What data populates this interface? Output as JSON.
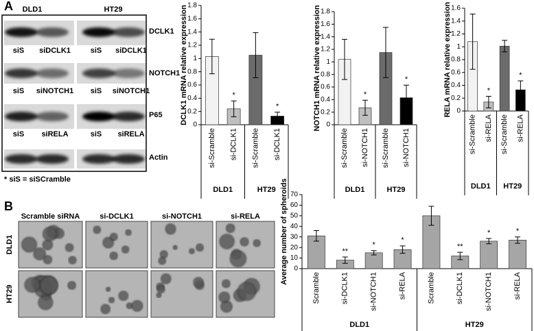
{
  "panels": [
    "A",
    "B"
  ],
  "blot": {
    "cell_lines": [
      "DLD1",
      "HT29"
    ],
    "rows": [
      {
        "protein": "DCLK1",
        "lanes": [
          [
            "siS",
            "siDCLK1"
          ],
          [
            "siS",
            "siDCLK1"
          ]
        ]
      },
      {
        "protein": "NOTCH1",
        "lanes": [
          [
            "siS",
            "siNOTCH1"
          ],
          [
            "siS",
            "siNOTCH1"
          ]
        ]
      },
      {
        "protein": "P65",
        "lanes": [
          [
            "siS",
            "siRELA"
          ],
          [
            "siS",
            "siRELA"
          ]
        ]
      },
      {
        "protein": "Actin"
      }
    ],
    "footnote": "* siS = siSCramble"
  },
  "micrographs": {
    "columns": [
      "Scramble siRNA",
      "si-DCLK1",
      "si-NOTCH1",
      "si-RELA"
    ],
    "rows": [
      "DLD1",
      "HT29"
    ]
  },
  "chart_data": [
    {
      "type": "bar",
      "ylabel": "DCLK1 mRNA relative expression",
      "categories": [
        "si-Scramble",
        "si-DCLK1",
        "si-Scramble",
        "si-DCLK1"
      ],
      "groups": [
        "DLD1",
        "HT29"
      ],
      "values": [
        1.03,
        0.24,
        1.05,
        0.13
      ],
      "errors": [
        0.26,
        0.12,
        0.34,
        0.06
      ],
      "annotations": [
        null,
        "*",
        null,
        "*"
      ],
      "colors": [
        "#f2f2f2",
        "#bfbfbf",
        "#6b6b6b",
        "#000000"
      ],
      "ylim": [
        0,
        1.8
      ],
      "yticks": [
        0,
        0.2,
        0.4,
        0.6,
        0.8,
        1,
        1.2,
        1.4,
        1.6,
        1.8
      ]
    },
    {
      "type": "bar",
      "ylabel": "NOTCH1 mRNA relative expression",
      "categories": [
        "si-Scramble",
        "si-NOTCH1",
        "si-Scramble",
        "si-NOTCH1"
      ],
      "groups": [
        "DLD1",
        "HT29"
      ],
      "values": [
        1.04,
        0.27,
        1.15,
        0.43
      ],
      "errors": [
        0.32,
        0.12,
        0.4,
        0.2
      ],
      "annotations": [
        null,
        "*",
        null,
        "*"
      ],
      "colors": [
        "#f2f2f2",
        "#bfbfbf",
        "#6b6b6b",
        "#000000"
      ],
      "ylim": [
        0,
        1.8
      ],
      "yticks": [
        0,
        0.2,
        0.4,
        0.6,
        0.8,
        1,
        1.2,
        1.4,
        1.6,
        1.8
      ]
    },
    {
      "type": "bar",
      "ylabel": "RELA mRNA relative expression",
      "categories": [
        "si-Scramble",
        "si-RELA",
        "si-Scramble",
        "si-RELA"
      ],
      "groups": [
        "DLD1",
        "HT29"
      ],
      "values": [
        1.08,
        0.14,
        1.01,
        0.33
      ],
      "errors": [
        0.43,
        0.09,
        0.09,
        0.14
      ],
      "annotations": [
        null,
        "*",
        null,
        "*"
      ],
      "colors": [
        "#f2f2f2",
        "#bfbfbf",
        "#6b6b6b",
        "#000000"
      ],
      "ylim": [
        0,
        1.6
      ],
      "yticks": [
        0,
        0.2,
        0.4,
        0.6,
        0.8,
        1,
        1.2,
        1.4,
        1.6
      ]
    },
    {
      "type": "bar",
      "ylabel": "Average number of spheroids",
      "categories": [
        "Scramble",
        "si-DCLK1",
        "si-NOTCH1",
        "si-RELA",
        "Scramble",
        "si-DCLK1",
        "si-NOTCH1",
        "si-RELA"
      ],
      "groups": [
        "DLD1",
        "HT29"
      ],
      "values": [
        31,
        8,
        15,
        18,
        50,
        12,
        26,
        27
      ],
      "errors": [
        5,
        3,
        2,
        3.5,
        9,
        3.5,
        2.5,
        3
      ],
      "annotations": [
        null,
        "**",
        "*",
        "*",
        null,
        "**",
        "*",
        "*"
      ],
      "color": "#a6a6a6",
      "ylim": [
        0,
        70
      ],
      "yticks": [
        0,
        10,
        20,
        30,
        40,
        50,
        60,
        70
      ]
    }
  ]
}
